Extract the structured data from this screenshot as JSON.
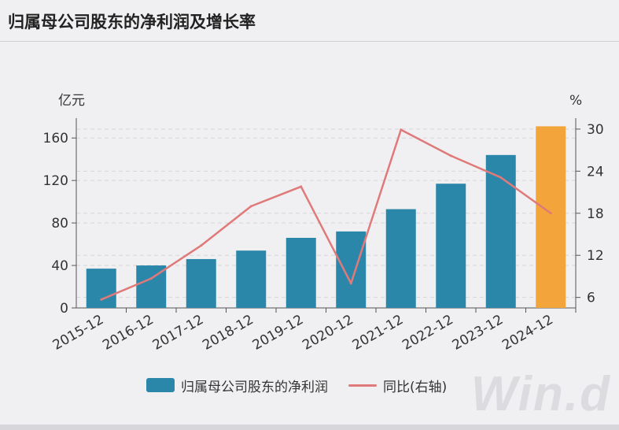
{
  "title": "归属母公司股东的净利润及增长率",
  "watermark": "Win.d",
  "colors": {
    "bar": "#2b87aa",
    "bar_highlight": "#f3a43a",
    "line": "#e07a7a",
    "grid": "#d6d6da",
    "axis": "#555555"
  },
  "chart_data": {
    "type": "bar",
    "categories": [
      "2015-12",
      "2016-12",
      "2017-12",
      "2018-12",
      "2019-12",
      "2020-12",
      "2021-12",
      "2022-12",
      "2023-12",
      "2024-12"
    ],
    "series": [
      {
        "name": "归属母公司股东的净利润",
        "type": "bar",
        "axis": "left",
        "values": [
          37,
          40,
          46,
          54,
          66,
          72,
          93,
          117,
          144,
          171
        ],
        "highlight_index": 9
      },
      {
        "name": "同比(右轴)",
        "type": "line",
        "axis": "right",
        "values": [
          5.7,
          8.7,
          13.4,
          19.0,
          21.8,
          8.0,
          29.9,
          26.2,
          23.1,
          18.0
        ]
      }
    ],
    "y_left": {
      "label": "亿元",
      "ticks": [
        0,
        40,
        80,
        120,
        160
      ],
      "range": [
        0,
        175
      ]
    },
    "y_right": {
      "label": "%",
      "ticks": [
        6,
        12,
        18,
        24,
        30
      ],
      "range": [
        4.5,
        31.0
      ]
    },
    "grid": true,
    "legend_position": "bottom"
  }
}
